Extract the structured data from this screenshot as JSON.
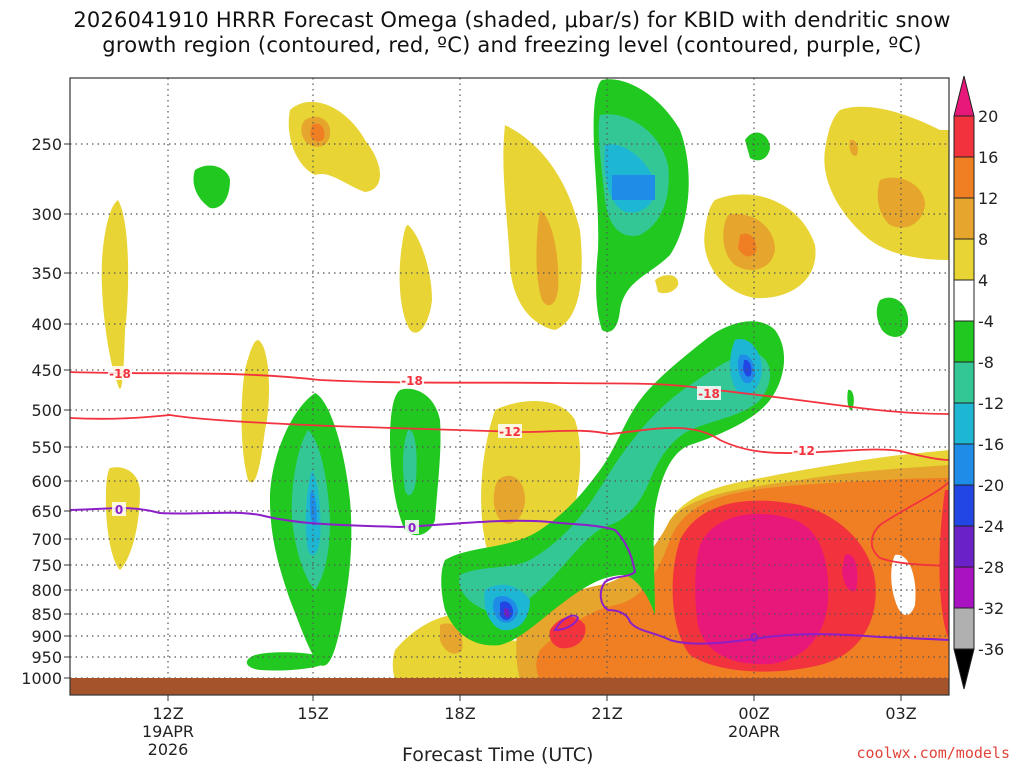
{
  "title_line1": "2026041910 HRRR Forecast Omega (shaded, μbar/s) for KBID with dendritic snow",
  "title_line2": "growth region (contoured, red, ºC) and freezing level (contoured, purple, ºC)",
  "x_axis_title": "Forecast Time (UTC)",
  "credit": "coolwx.com/models",
  "chart_data": {
    "type": "heatmap",
    "title": "2026041910 HRRR Forecast Omega (shaded, μbar/s) for KBID with dendritic snow growth region (contoured, red, ºC) and freezing level (contoured, purple, ºC)",
    "xlabel": "Forecast Time (UTC)",
    "ylabel": "",
    "y_ticks": [
      "250",
      "300",
      "350",
      "400",
      "450",
      "500",
      "550",
      "600",
      "650",
      "700",
      "750",
      "800",
      "850",
      "900",
      "950",
      "1000"
    ],
    "x_ticks": [
      {
        "label": "12Z",
        "sub1": "19APR",
        "sub2": "2026"
      },
      {
        "label": "15Z",
        "sub1": "",
        "sub2": ""
      },
      {
        "label": "18Z",
        "sub1": "",
        "sub2": ""
      },
      {
        "label": "21Z",
        "sub1": "",
        "sub2": ""
      },
      {
        "label": "00Z",
        "sub1": "20APR",
        "sub2": ""
      },
      {
        "label": "03Z",
        "sub1": "",
        "sub2": ""
      }
    ],
    "colorbar_labels": [
      "20",
      "16",
      "12",
      "8",
      "4",
      "-4",
      "-8",
      "-12",
      "-16",
      "-20",
      "-24",
      "-28",
      "-32",
      "-36"
    ],
    "colorbar_colors": [
      "#e8177a",
      "#f2333e",
      "#f07f24",
      "#e6a52c",
      "#e8d434",
      "#ffffff",
      "#21c81f",
      "#34c796",
      "#1eb7d3",
      "#1f8de8",
      "#2246e4",
      "#6a21c8",
      "#a812c0",
      "#b0b0b0"
    ],
    "contour_labels": {
      "dgz": [
        "-18",
        "-18",
        "-18",
        "-12",
        "-12"
      ],
      "freezing": [
        "0",
        "0",
        "0"
      ]
    }
  }
}
